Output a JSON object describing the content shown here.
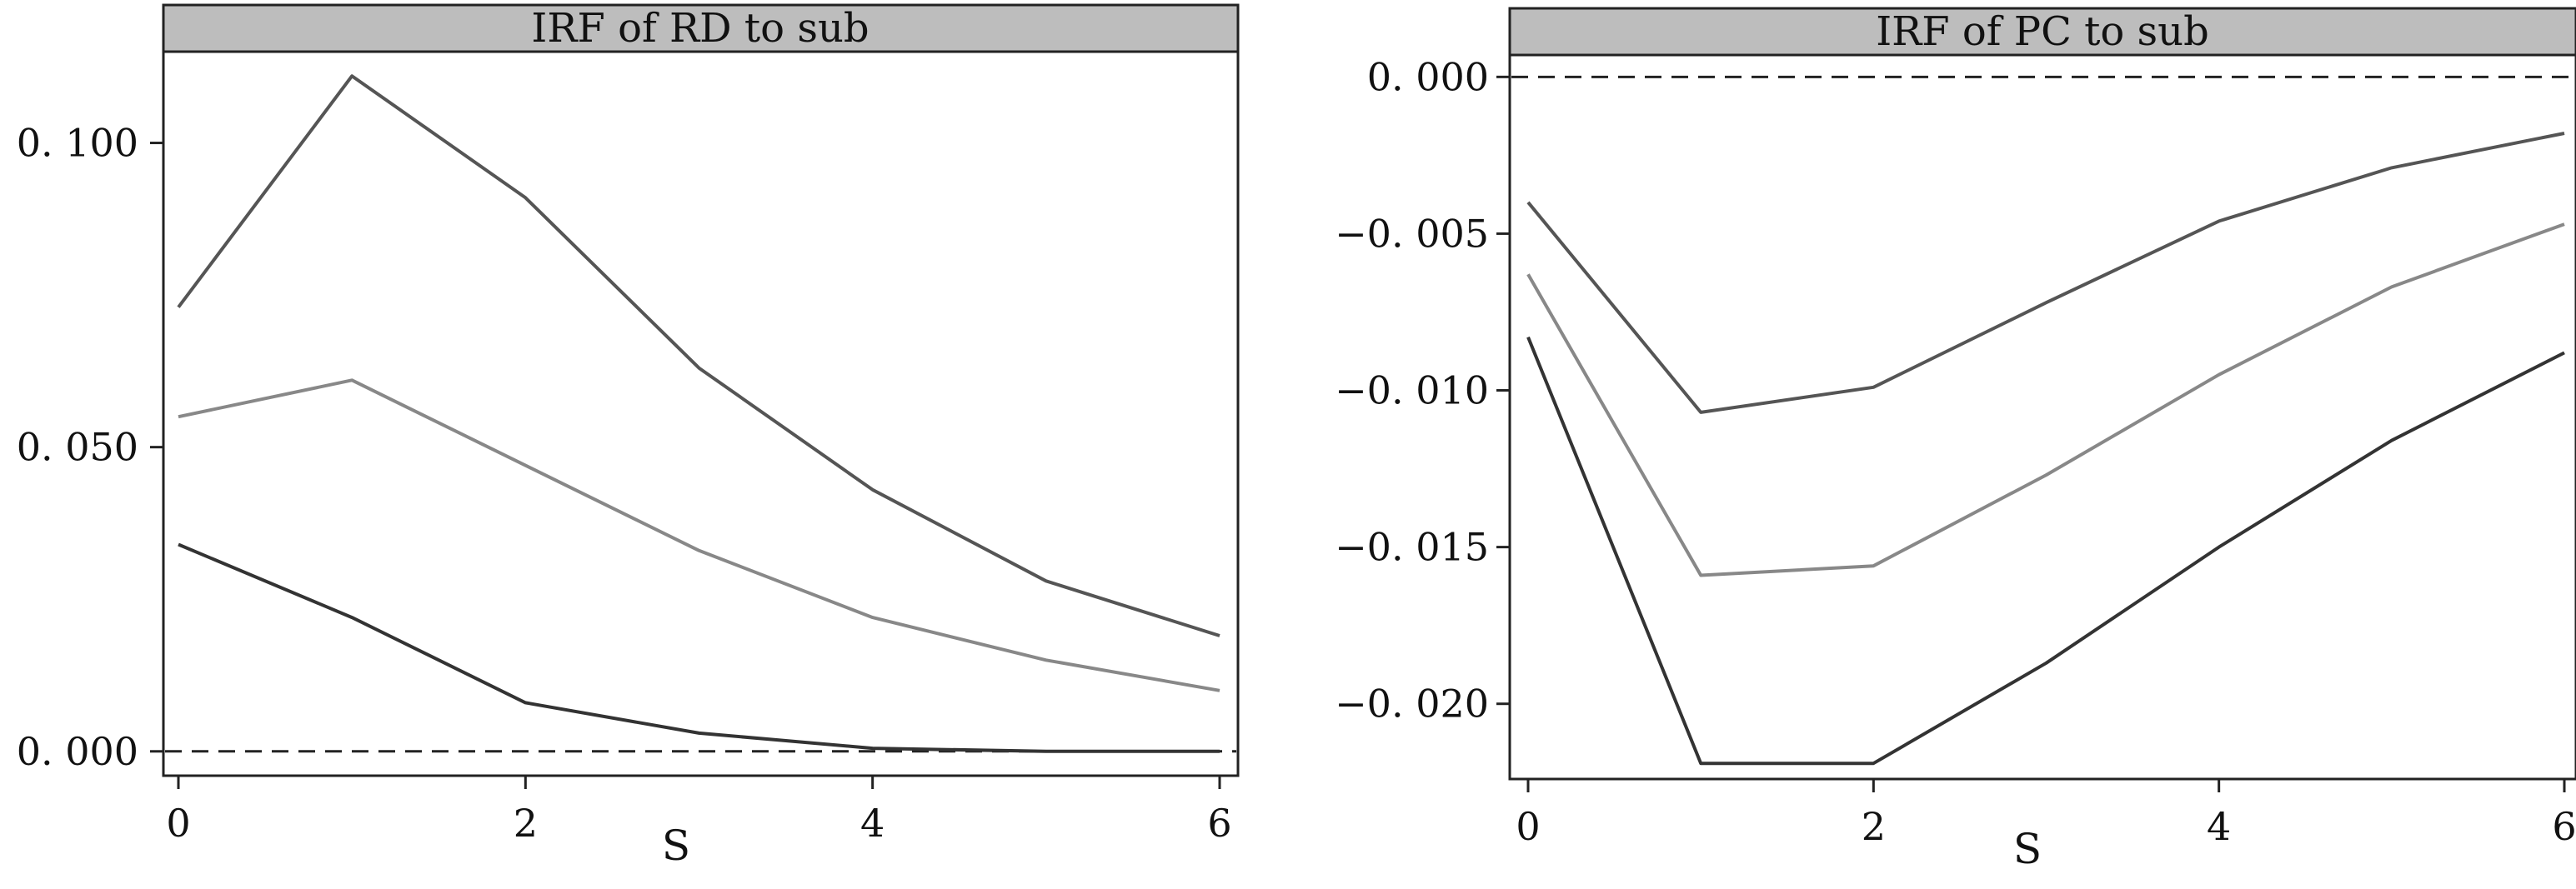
{
  "chart_data": [
    {
      "type": "line",
      "title": "IRF of RD to sub",
      "xlabel": "S",
      "ylabel": "",
      "x": [
        0,
        1,
        2,
        3,
        4,
        5,
        6
      ],
      "xticks": [
        0,
        2,
        4,
        6
      ],
      "xtick_labels": [
        "0",
        "2",
        "4",
        "6"
      ],
      "yticks": [
        0.0,
        0.05,
        0.1
      ],
      "ytick_labels": [
        "0. 000",
        "0. 050",
        "0. 100"
      ],
      "ylim": [
        -0.004,
        0.115
      ],
      "grid": false,
      "reference_line": 0.0,
      "series": [
        {
          "values": [
            0.073,
            0.111,
            0.091,
            0.063,
            0.043,
            0.028,
            0.019
          ],
          "color": "#555555"
        },
        {
          "values": [
            0.055,
            0.061,
            0.047,
            0.033,
            0.022,
            0.015,
            0.01
          ],
          "color": "#888888"
        },
        {
          "values": [
            0.034,
            0.022,
            0.008,
            0.003,
            0.0005,
            0.0,
            0.0
          ],
          "color": "#333333"
        }
      ]
    },
    {
      "type": "line",
      "title": "IRF of PC to sub",
      "xlabel": "S",
      "ylabel": "",
      "x": [
        0,
        1,
        2,
        3,
        4,
        5,
        6
      ],
      "xticks": [
        0,
        2,
        4,
        6
      ],
      "xtick_labels": [
        "0",
        "2",
        "4",
        "6"
      ],
      "yticks": [
        0.0,
        -0.005,
        -0.01,
        -0.015,
        -0.02
      ],
      "ytick_labels": [
        "0. 000",
        "−0. 005",
        "−0. 010",
        "−0. 015",
        "−0. 020"
      ],
      "ylim": [
        -0.0224,
        0.0007
      ],
      "grid": false,
      "reference_line": 0.0,
      "series": [
        {
          "values": [
            -0.004,
            -0.0107,
            -0.0099,
            -0.0072,
            -0.0046,
            -0.0029,
            -0.0018
          ],
          "color": "#555555"
        },
        {
          "values": [
            -0.0063,
            -0.0159,
            -0.0156,
            -0.0127,
            -0.0095,
            -0.0067,
            -0.0047
          ],
          "color": "#888888"
        },
        {
          "values": [
            -0.0083,
            -0.0219,
            -0.0219,
            -0.0187,
            -0.015,
            -0.0116,
            -0.0088
          ],
          "color": "#333333"
        }
      ]
    }
  ]
}
